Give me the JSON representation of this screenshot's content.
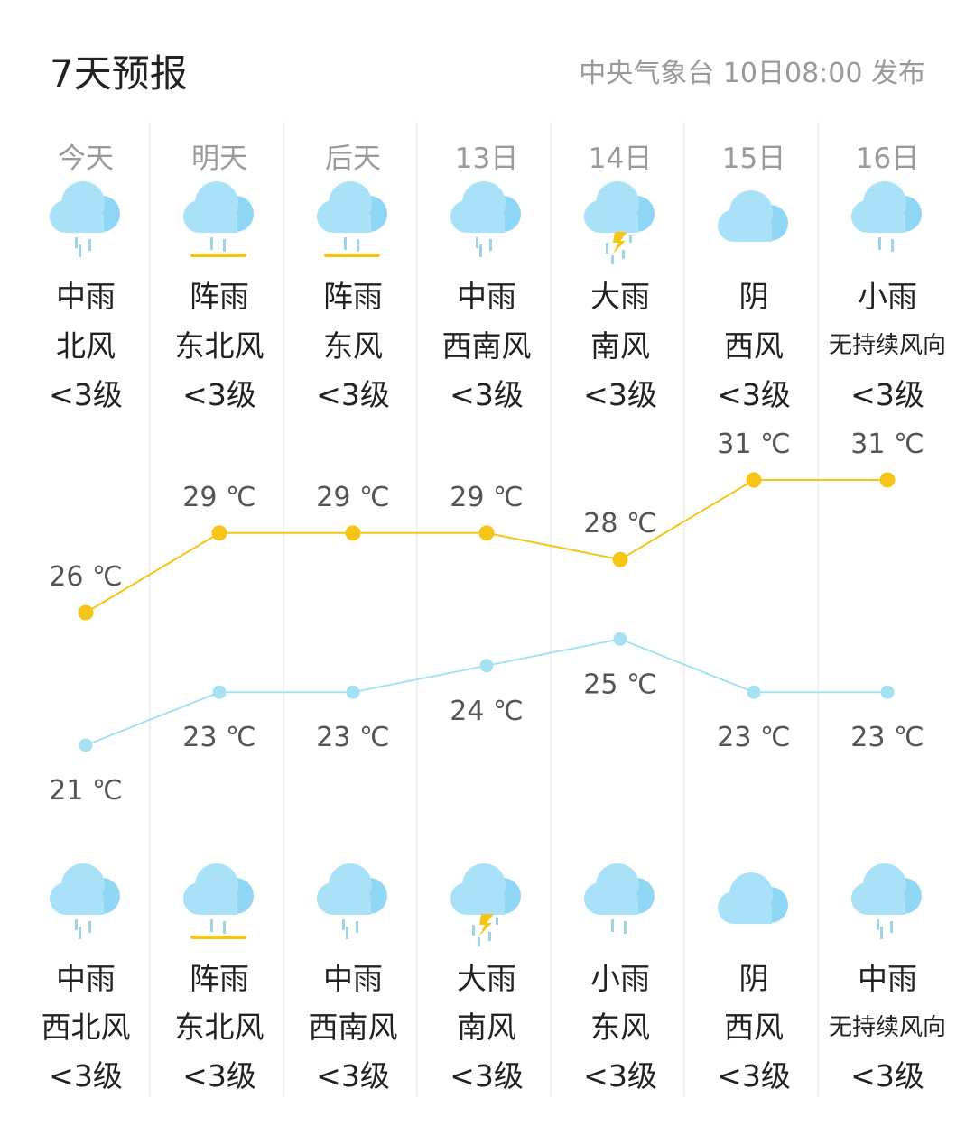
{
  "header": {
    "title": "7天预报",
    "source": "中央气象台 10日08:00 发布"
  },
  "colors": {
    "high_line": "#f5c518",
    "low_line": "#a6e1f2",
    "cloud": "#a9e2f8",
    "cloud_dark": "#8fd7f5",
    "drop": "#9fd3e6",
    "bolt": "#f5c518"
  },
  "days": [
    {
      "label": "今天",
      "day": {
        "weather": "中雨",
        "icon": "moderate-rain-icon",
        "wind": "北风",
        "level": "<3级"
      },
      "night": {
        "weather": "中雨",
        "icon": "moderate-rain-icon",
        "wind": "西北风",
        "level": "<3级"
      },
      "high": "26 ℃",
      "low": "21 ℃"
    },
    {
      "label": "明天",
      "day": {
        "weather": "阵雨",
        "icon": "shower-icon",
        "wind": "东北风",
        "level": "<3级"
      },
      "night": {
        "weather": "阵雨",
        "icon": "shower-icon",
        "wind": "东北风",
        "level": "<3级"
      },
      "high": "29 ℃",
      "low": "23 ℃"
    },
    {
      "label": "后天",
      "day": {
        "weather": "阵雨",
        "icon": "shower-icon",
        "wind": "东风",
        "level": "<3级"
      },
      "night": {
        "weather": "中雨",
        "icon": "moderate-rain-icon",
        "wind": "西南风",
        "level": "<3级"
      },
      "high": "29 ℃",
      "low": "23 ℃"
    },
    {
      "label": "13日",
      "day": {
        "weather": "中雨",
        "icon": "moderate-rain-icon",
        "wind": "西南风",
        "level": "<3级"
      },
      "night": {
        "weather": "大雨",
        "icon": "thunderstorm-icon",
        "wind": "南风",
        "level": "<3级"
      },
      "high": "29 ℃",
      "low": "24 ℃"
    },
    {
      "label": "14日",
      "day": {
        "weather": "大雨",
        "icon": "thunderstorm-icon",
        "wind": "南风",
        "level": "<3级"
      },
      "night": {
        "weather": "小雨",
        "icon": "light-rain-icon",
        "wind": "东风",
        "level": "<3级"
      },
      "high": "28 ℃",
      "low": "25 ℃"
    },
    {
      "label": "15日",
      "day": {
        "weather": "阴",
        "icon": "overcast-icon",
        "wind": "西风",
        "level": "<3级"
      },
      "night": {
        "weather": "阴",
        "icon": "overcast-icon",
        "wind": "西风",
        "level": "<3级"
      },
      "high": "31 ℃",
      "low": "23 ℃"
    },
    {
      "label": "16日",
      "day": {
        "weather": "小雨",
        "icon": "light-rain-icon",
        "wind": "无持续风向",
        "level": "<3级"
      },
      "night": {
        "weather": "中雨",
        "icon": "moderate-rain-icon",
        "wind": "无持续风向",
        "level": "<3级"
      },
      "high": "31 ℃",
      "low": "23 ℃"
    }
  ],
  "chart_data": {
    "type": "line",
    "categories": [
      "今天",
      "明天",
      "后天",
      "13日",
      "14日",
      "15日",
      "16日"
    ],
    "series": [
      {
        "values": [
          26,
          29,
          29,
          29,
          28,
          31,
          31
        ]
      },
      {
        "values": [
          21,
          23,
          23,
          24,
          25,
          23,
          23
        ]
      }
    ],
    "unit": "℃"
  }
}
